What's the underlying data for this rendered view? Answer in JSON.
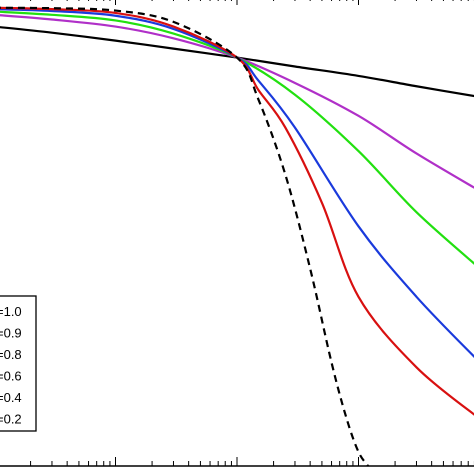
{
  "chart_data": {
    "type": "line",
    "title": "",
    "xlabel": "",
    "ylabel": "",
    "x_scale": "log",
    "xlim": [
      0.01,
      100
    ],
    "ylim": [
      0,
      1
    ],
    "grid": false,
    "legend_placement": "bottom-left",
    "series": [
      {
        "name": "=1.0",
        "color": "#000000",
        "dash": "solid",
        "x": [
          0.01,
          0.03,
          0.1,
          0.3,
          1,
          3,
          10,
          30,
          100
        ],
        "y": [
          0.935,
          0.922,
          0.905,
          0.888,
          0.869,
          0.85,
          0.83,
          0.808,
          0.785
        ]
      },
      {
        "name": "=0.9",
        "color": "#b030c8",
        "dash": "solid",
        "x": [
          0.01,
          0.03,
          0.1,
          0.3,
          1,
          3,
          10,
          30,
          100
        ],
        "y": [
          0.96,
          0.95,
          0.935,
          0.91,
          0.869,
          0.815,
          0.745,
          0.665,
          0.585
        ]
      },
      {
        "name": "=0.8",
        "color": "#22e010",
        "dash": "solid",
        "x": [
          0.01,
          0.03,
          0.1,
          0.3,
          1,
          3,
          10,
          30,
          100
        ],
        "y": [
          0.967,
          0.96,
          0.948,
          0.92,
          0.869,
          0.79,
          0.67,
          0.54,
          0.42
        ]
      },
      {
        "name": "=0.6",
        "color": "#1a3adc",
        "dash": "solid",
        "x": [
          0.01,
          0.03,
          0.1,
          0.3,
          1,
          1.5,
          3,
          10,
          30,
          100
        ],
        "y": [
          0.972,
          0.968,
          0.958,
          0.93,
          0.869,
          0.82,
          0.72,
          0.51,
          0.36,
          0.22
        ]
      },
      {
        "name": "=0.4",
        "color": "#d81010",
        "dash": "solid",
        "x": [
          0.01,
          0.03,
          0.1,
          0.3,
          1,
          1.5,
          2.5,
          5,
          10,
          30,
          100
        ],
        "y": [
          0.975,
          0.972,
          0.964,
          0.935,
          0.869,
          0.8,
          0.72,
          0.56,
          0.36,
          0.21,
          0.1
        ]
      },
      {
        "name": "=0.2",
        "color": "#000000",
        "dash": "dashed",
        "x": [
          0.01,
          0.03,
          0.1,
          0.3,
          1,
          1.5,
          2.5,
          4,
          6,
          8,
          10,
          12
        ],
        "y": [
          0.975,
          0.974,
          0.969,
          0.945,
          0.869,
          0.78,
          0.62,
          0.42,
          0.22,
          0.1,
          0.03,
          0.0
        ]
      }
    ]
  }
}
